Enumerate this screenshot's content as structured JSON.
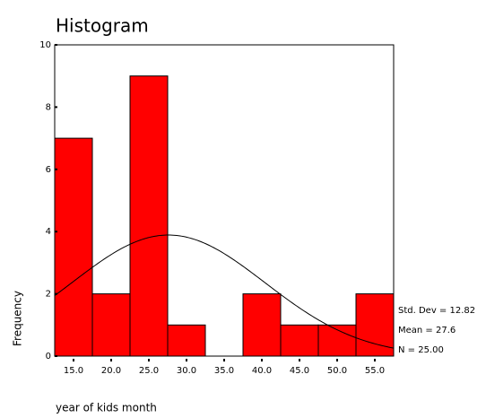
{
  "chart_data": {
    "type": "histogram",
    "title": "Histogram",
    "x_label": "year of kids month",
    "y_label": "Frequency",
    "bins": [
      12.5,
      17.5,
      22.5,
      27.5,
      32.5,
      37.5,
      42.5,
      47.5,
      52.5,
      57.5
    ],
    "counts": [
      7,
      2,
      9,
      1,
      0,
      2,
      1,
      1,
      2
    ],
    "color": "#ff0000",
    "xlim": [
      12.5,
      57.5
    ],
    "xticks": [
      {
        "value": 15,
        "label": "15.0"
      },
      {
        "value": 20,
        "label": "20.0"
      },
      {
        "value": 25,
        "label": "25.0"
      },
      {
        "value": 30,
        "label": "30.0"
      },
      {
        "value": 35,
        "label": "35.0"
      },
      {
        "value": 40,
        "label": "40.0"
      },
      {
        "value": 45,
        "label": "45.0"
      },
      {
        "value": 50,
        "label": "50.0"
      },
      {
        "value": 55,
        "label": "55.0"
      }
    ],
    "ylim": [
      0,
      10
    ],
    "yticks": [
      0,
      2,
      4,
      6,
      8,
      10
    ],
    "stats": [
      {
        "value": 12.82,
        "label": "Std. Dev = 12.82"
      },
      {
        "value": 27.6,
        "label": "Mean = 27.6"
      },
      {
        "value": 25,
        "label": "N = 25.00"
      }
    ],
    "normal_curve": true
  }
}
